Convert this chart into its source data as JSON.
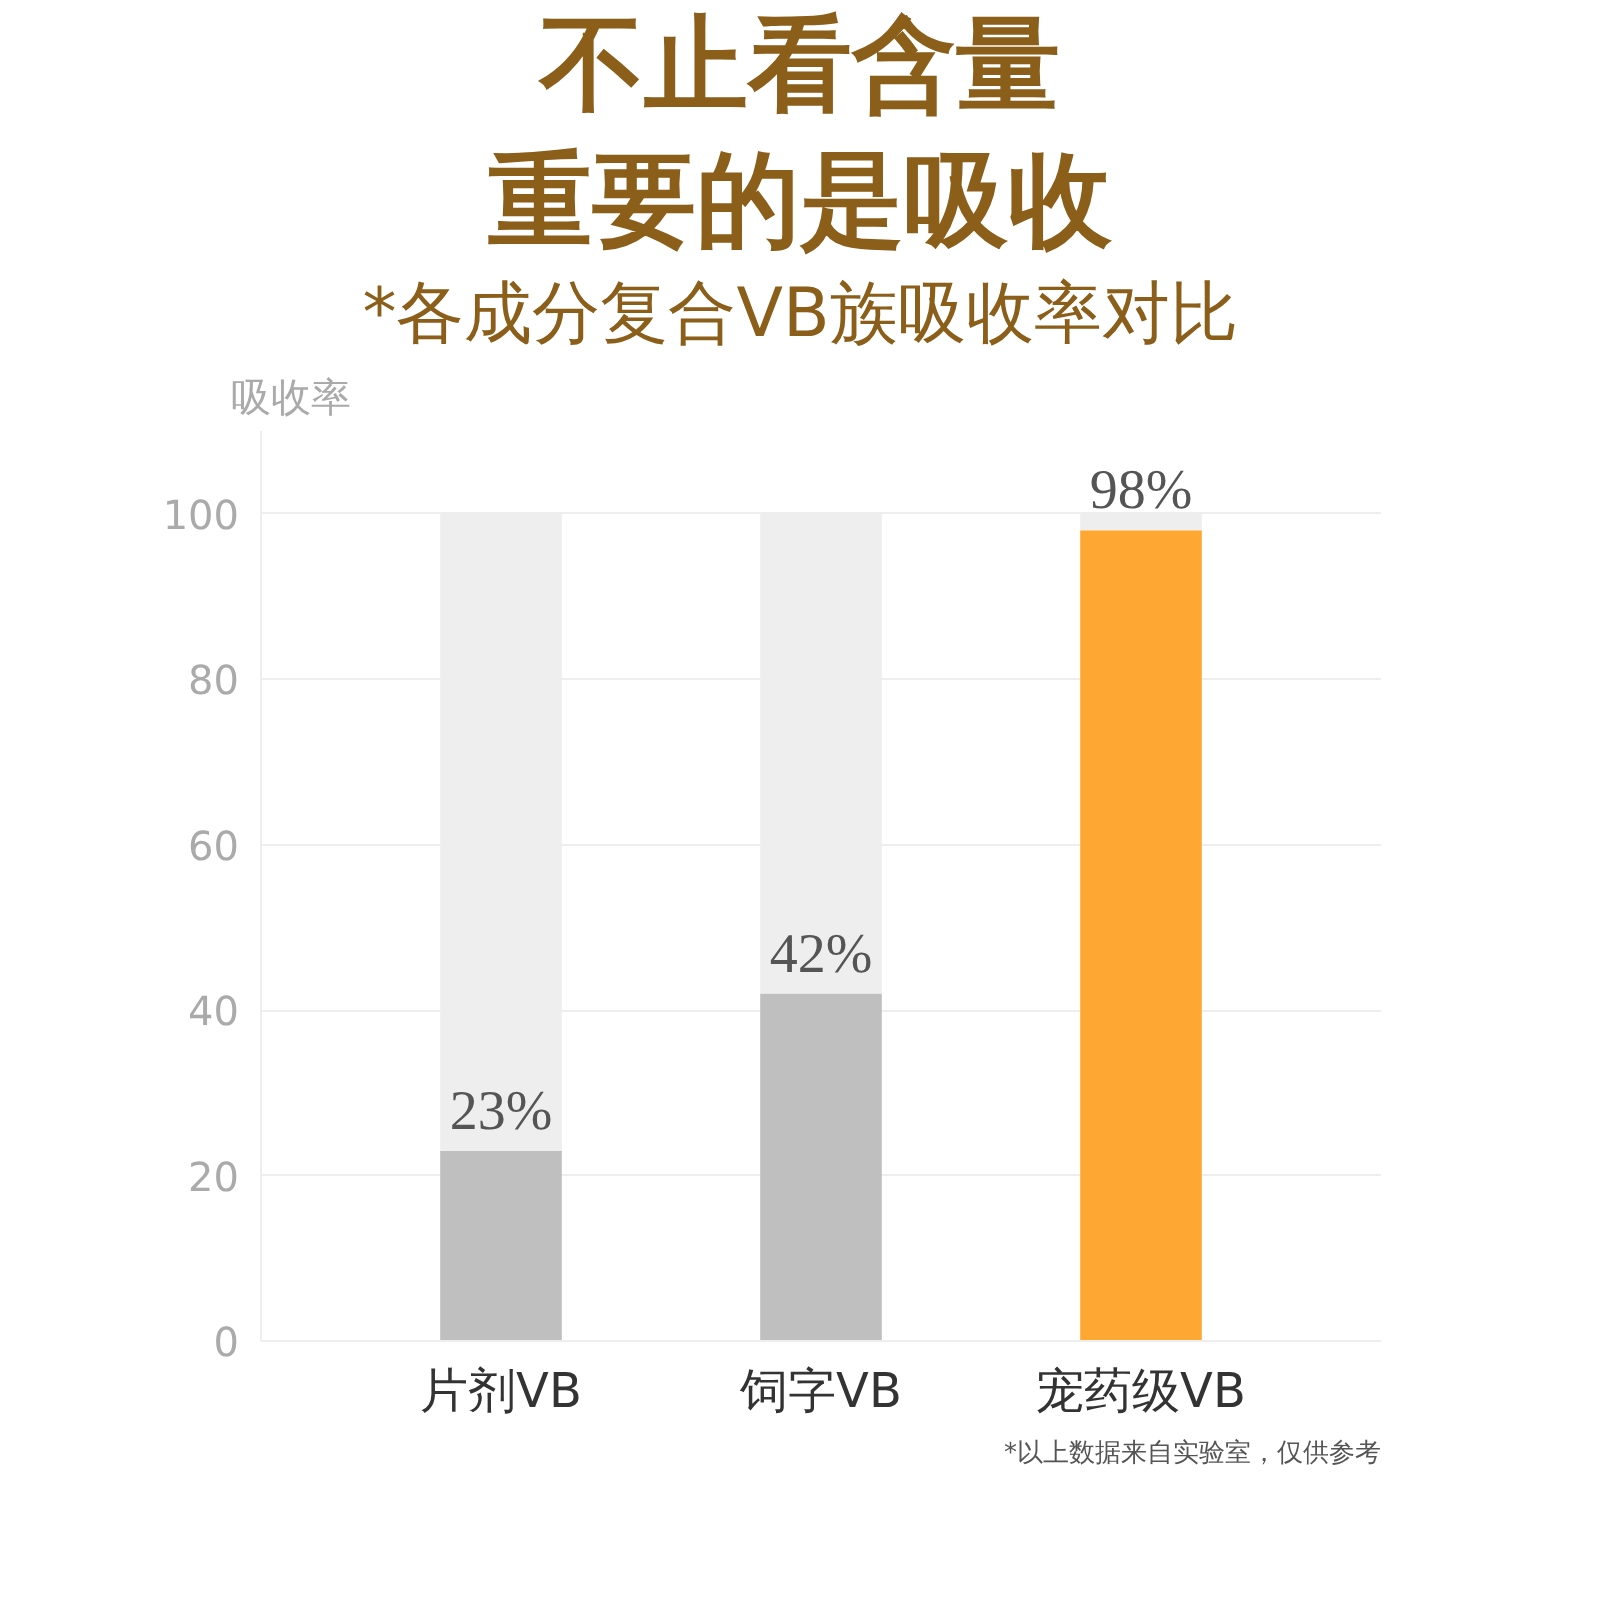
{
  "chart_data": {
    "type": "bar",
    "title": "不止看含量",
    "subtitle": "重要的是吸收",
    "ylabel": "吸收率",
    "categories": [
      "片剂VB",
      "饲字VB",
      "宠药级VB"
    ],
    "stacked": true,
    "series": [
      {
        "colors": [
          "#bfbfbf",
          "#bfbfbf",
          "#ffa733"
        ],
        "values": [
          23,
          42,
          98
        ],
        "value_labels": [
          "23%",
          "42%",
          "98%"
        ]
      },
      {
        "color": "#eeeeee",
        "values": [
          77,
          58,
          2
        ]
      }
    ],
    "ylim": [
      0,
      110
    ],
    "yticks": [
      0,
      20,
      40,
      60,
      80,
      100
    ],
    "grid": "y",
    "annotations": [
      "*各成分复合VB族吸收率对比",
      "*以上数据来自实验室，仅供参考"
    ]
  }
}
